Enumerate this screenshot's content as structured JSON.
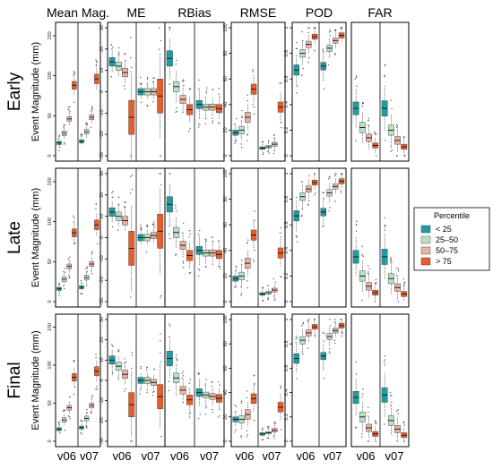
{
  "colors": {
    "lt25": "#1f9ea0",
    "p25_50": "#b9e0c6",
    "p50_75": "#e8b3a3",
    "gt75": "#e85d2a",
    "frame": "#000000",
    "whisker": "#444444",
    "outlier": "#555555"
  },
  "chart_data": {
    "type": "boxplot",
    "title": "",
    "ylabel": "Event Magnitude (mm)",
    "columns": [
      "Mean Mag.",
      "ME",
      "RBias",
      "RMSE",
      "POD",
      "FAR"
    ],
    "rows": [
      "Early",
      "Late",
      "Final"
    ],
    "groups": [
      "v06",
      "v07"
    ],
    "percentiles": [
      "< 25",
      "25–50",
      "50–75",
      "> 75"
    ],
    "legend": {
      "title": "Percentile",
      "entries": [
        "< 25",
        "25–50",
        "50–75",
        "> 75"
      ],
      "position": "right"
    },
    "axes": {
      "Mean Mag.": {
        "ylim": [
          0,
          160
        ],
        "ticks": [
          0,
          50,
          100,
          150
        ]
      },
      "ME": {
        "ylim": [
          -30,
          30
        ],
        "ticks": [
          -30,
          -20,
          -10,
          0,
          10,
          20,
          30
        ]
      },
      "RBias": {
        "ylim": [
          -1.0,
          1.5
        ],
        "ticks": []
      },
      "RMSE": {
        "ylim": [
          0,
          100
        ],
        "ticks": [
          0,
          20,
          40,
          60,
          80,
          100
        ]
      },
      "POD": {
        "ylim": [
          0.0,
          1.0
        ],
        "ticks": [
          0.0,
          0.2,
          0.4,
          0.6,
          0.8,
          1.0
        ]
      },
      "FAR": {
        "ylim": [
          0.0,
          1.0
        ],
        "ticks": []
      }
    },
    "panels": {
      "Early": {
        "Mean Mag.": {
          "v06": [
            [
              16,
              2,
              3
            ],
            [
              28,
              3,
              4
            ],
            [
              46,
              3,
              5
            ],
            [
              88,
              5,
              7
            ]
          ],
          "v07": [
            [
              18,
              2,
              3
            ],
            [
              30,
              3,
              4
            ],
            [
              48,
              3,
              5
            ],
            [
              96,
              6,
              8
            ]
          ]
        },
        "ME": {
          "v06": [
            [
              14,
              2,
              3
            ],
            [
              12,
              2,
              3
            ],
            [
              9,
              2,
              3
            ],
            [
              -12,
              8,
              12
            ]
          ],
          "v07": [
            [
              0,
              1.5,
              2
            ],
            [
              0,
              1.5,
              2
            ],
            [
              0,
              1.5,
              2
            ],
            [
              -2,
              8,
              12
            ]
          ]
        },
        "RBias": {
          "v06": [
            [
              0.9,
              0.15,
              0.25
            ],
            [
              0.35,
              0.1,
              0.2
            ],
            [
              0.1,
              0.08,
              0.15
            ],
            [
              -0.1,
              0.1,
              0.15
            ]
          ],
          "v07": [
            [
              0.0,
              0.08,
              0.2
            ],
            [
              -0.05,
              0.06,
              0.15
            ],
            [
              -0.05,
              0.06,
              0.12
            ],
            [
              -0.08,
              0.08,
              0.12
            ]
          ]
        },
        "RMSE": {
          "v06": [
            [
              18,
              2,
              4
            ],
            [
              20,
              3,
              5
            ],
            [
              30,
              4,
              6
            ],
            [
              52,
              4,
              7
            ]
          ],
          "v07": [
            [
              6,
              1,
              2
            ],
            [
              7,
              1,
              2
            ],
            [
              9,
              1.5,
              3
            ],
            [
              38,
              4,
              7
            ]
          ]
        },
        "POD": {
          "v06": [
            [
              0.67,
              0.04,
              0.08
            ],
            [
              0.8,
              0.03,
              0.06
            ],
            [
              0.87,
              0.025,
              0.05
            ],
            [
              0.93,
              0.02,
              0.04
            ]
          ],
          "v07": [
            [
              0.7,
              0.03,
              0.07
            ],
            [
              0.84,
              0.025,
              0.05
            ],
            [
              0.9,
              0.02,
              0.04
            ],
            [
              0.94,
              0.02,
              0.03
            ]
          ]
        },
        "FAR": {
          "v06": [
            [
              0.37,
              0.05,
              0.1
            ],
            [
              0.22,
              0.04,
              0.08
            ],
            [
              0.14,
              0.03,
              0.06
            ],
            [
              0.08,
              0.02,
              0.04
            ]
          ],
          "v07": [
            [
              0.37,
              0.06,
              0.12
            ],
            [
              0.2,
              0.04,
              0.08
            ],
            [
              0.12,
              0.03,
              0.06
            ],
            [
              0.07,
              0.02,
              0.04
            ]
          ]
        }
      },
      "Late": {
        "Mean Mag.": {
          "v06": [
            [
              16,
              2,
              3
            ],
            [
              28,
              3,
              4
            ],
            [
              44,
              3,
              5
            ],
            [
              86,
              5,
              7
            ]
          ],
          "v07": [
            [
              18,
              2,
              3
            ],
            [
              30,
              3,
              4
            ],
            [
              47,
              3,
              5
            ],
            [
              96,
              6,
              8
            ]
          ]
        },
        "ME": {
          "v06": [
            [
              12,
              2,
              3
            ],
            [
              10,
              2,
              3
            ],
            [
              8,
              2,
              3
            ],
            [
              -5,
              8,
              12
            ]
          ],
          "v07": [
            [
              0,
              1.5,
              2
            ],
            [
              0,
              1.5,
              2
            ],
            [
              1,
              1.5,
              2
            ],
            [
              3,
              8,
              12
            ]
          ]
        },
        "RBias": {
          "v06": [
            [
              0.9,
              0.15,
              0.25
            ],
            [
              0.35,
              0.1,
              0.2
            ],
            [
              0.1,
              0.08,
              0.15
            ],
            [
              -0.1,
              0.1,
              0.15
            ]
          ],
          "v07": [
            [
              0.0,
              0.08,
              0.2
            ],
            [
              -0.05,
              0.06,
              0.15
            ],
            [
              -0.05,
              0.06,
              0.12
            ],
            [
              -0.08,
              0.08,
              0.12
            ]
          ]
        },
        "RMSE": {
          "v06": [
            [
              18,
              2,
              4
            ],
            [
              20,
              3,
              5
            ],
            [
              30,
              4,
              6
            ],
            [
              52,
              4,
              7
            ]
          ],
          "v07": [
            [
              6,
              1,
              2
            ],
            [
              7,
              1,
              2
            ],
            [
              9,
              1.5,
              3
            ],
            [
              38,
              4,
              7
            ]
          ]
        },
        "POD": {
          "v06": [
            [
              0.67,
              0.04,
              0.08
            ],
            [
              0.82,
              0.03,
              0.06
            ],
            [
              0.88,
              0.025,
              0.05
            ],
            [
              0.93,
              0.02,
              0.04
            ]
          ],
          "v07": [
            [
              0.7,
              0.03,
              0.07
            ],
            [
              0.85,
              0.025,
              0.05
            ],
            [
              0.9,
              0.02,
              0.04
            ],
            [
              0.94,
              0.02,
              0.03
            ]
          ]
        },
        "FAR": {
          "v06": [
            [
              0.35,
              0.05,
              0.1
            ],
            [
              0.2,
              0.04,
              0.08
            ],
            [
              0.12,
              0.03,
              0.06
            ],
            [
              0.07,
              0.02,
              0.04
            ]
          ],
          "v07": [
            [
              0.35,
              0.06,
              0.12
            ],
            [
              0.18,
              0.04,
              0.08
            ],
            [
              0.11,
              0.03,
              0.06
            ],
            [
              0.06,
              0.02,
              0.04
            ]
          ]
        }
      },
      "Final": {
        "Mean Mag.": {
          "v06": [
            [
              16,
              2,
              3
            ],
            [
              28,
              3,
              4
            ],
            [
              44,
              3,
              5
            ],
            [
              84,
              5,
              7
            ]
          ],
          "v07": [
            [
              18,
              2,
              3
            ],
            [
              30,
              3,
              4
            ],
            [
              47,
              3,
              5
            ],
            [
              92,
              6,
              8
            ]
          ]
        },
        "ME": {
          "v06": [
            [
              10,
              2,
              3
            ],
            [
              7,
              2,
              3
            ],
            [
              3,
              2,
              3
            ],
            [
              -12,
              6,
              10
            ]
          ],
          "v07": [
            [
              0,
              1.5,
              2
            ],
            [
              0,
              1.5,
              2
            ],
            [
              -1,
              1.5,
              2
            ],
            [
              -8,
              6,
              10
            ]
          ]
        },
        "RBias": {
          "v06": [
            [
              0.7,
              0.15,
              0.25
            ],
            [
              0.3,
              0.1,
              0.2
            ],
            [
              0.05,
              0.08,
              0.15
            ],
            [
              -0.15,
              0.1,
              0.15
            ]
          ],
          "v07": [
            [
              0.0,
              0.08,
              0.2
            ],
            [
              -0.05,
              0.06,
              0.15
            ],
            [
              -0.08,
              0.06,
              0.12
            ],
            [
              -0.12,
              0.08,
              0.12
            ]
          ]
        },
        "RMSE": {
          "v06": [
            [
              18,
              2,
              4
            ],
            [
              18,
              3,
              5
            ],
            [
              22,
              4,
              6
            ],
            [
              35,
              4,
              7
            ]
          ],
          "v07": [
            [
              6,
              1,
              2
            ],
            [
              7,
              1,
              2
            ],
            [
              9,
              1.5,
              3
            ],
            [
              28,
              4,
              7
            ]
          ]
        },
        "POD": {
          "v06": [
            [
              0.68,
              0.04,
              0.08
            ],
            [
              0.83,
              0.03,
              0.06
            ],
            [
              0.89,
              0.025,
              0.05
            ],
            [
              0.94,
              0.02,
              0.04
            ]
          ],
          "v07": [
            [
              0.7,
              0.03,
              0.07
            ],
            [
              0.86,
              0.025,
              0.05
            ],
            [
              0.91,
              0.02,
              0.04
            ],
            [
              0.95,
              0.02,
              0.03
            ]
          ]
        },
        "FAR": {
          "v06": [
            [
              0.36,
              0.05,
              0.1
            ],
            [
              0.2,
              0.04,
              0.08
            ],
            [
              0.11,
              0.03,
              0.06
            ],
            [
              0.06,
              0.02,
              0.04
            ]
          ],
          "v07": [
            [
              0.38,
              0.06,
              0.12
            ],
            [
              0.17,
              0.04,
              0.08
            ],
            [
              0.1,
              0.03,
              0.06
            ],
            [
              0.05,
              0.02,
              0.04
            ]
          ]
        }
      }
    }
  }
}
